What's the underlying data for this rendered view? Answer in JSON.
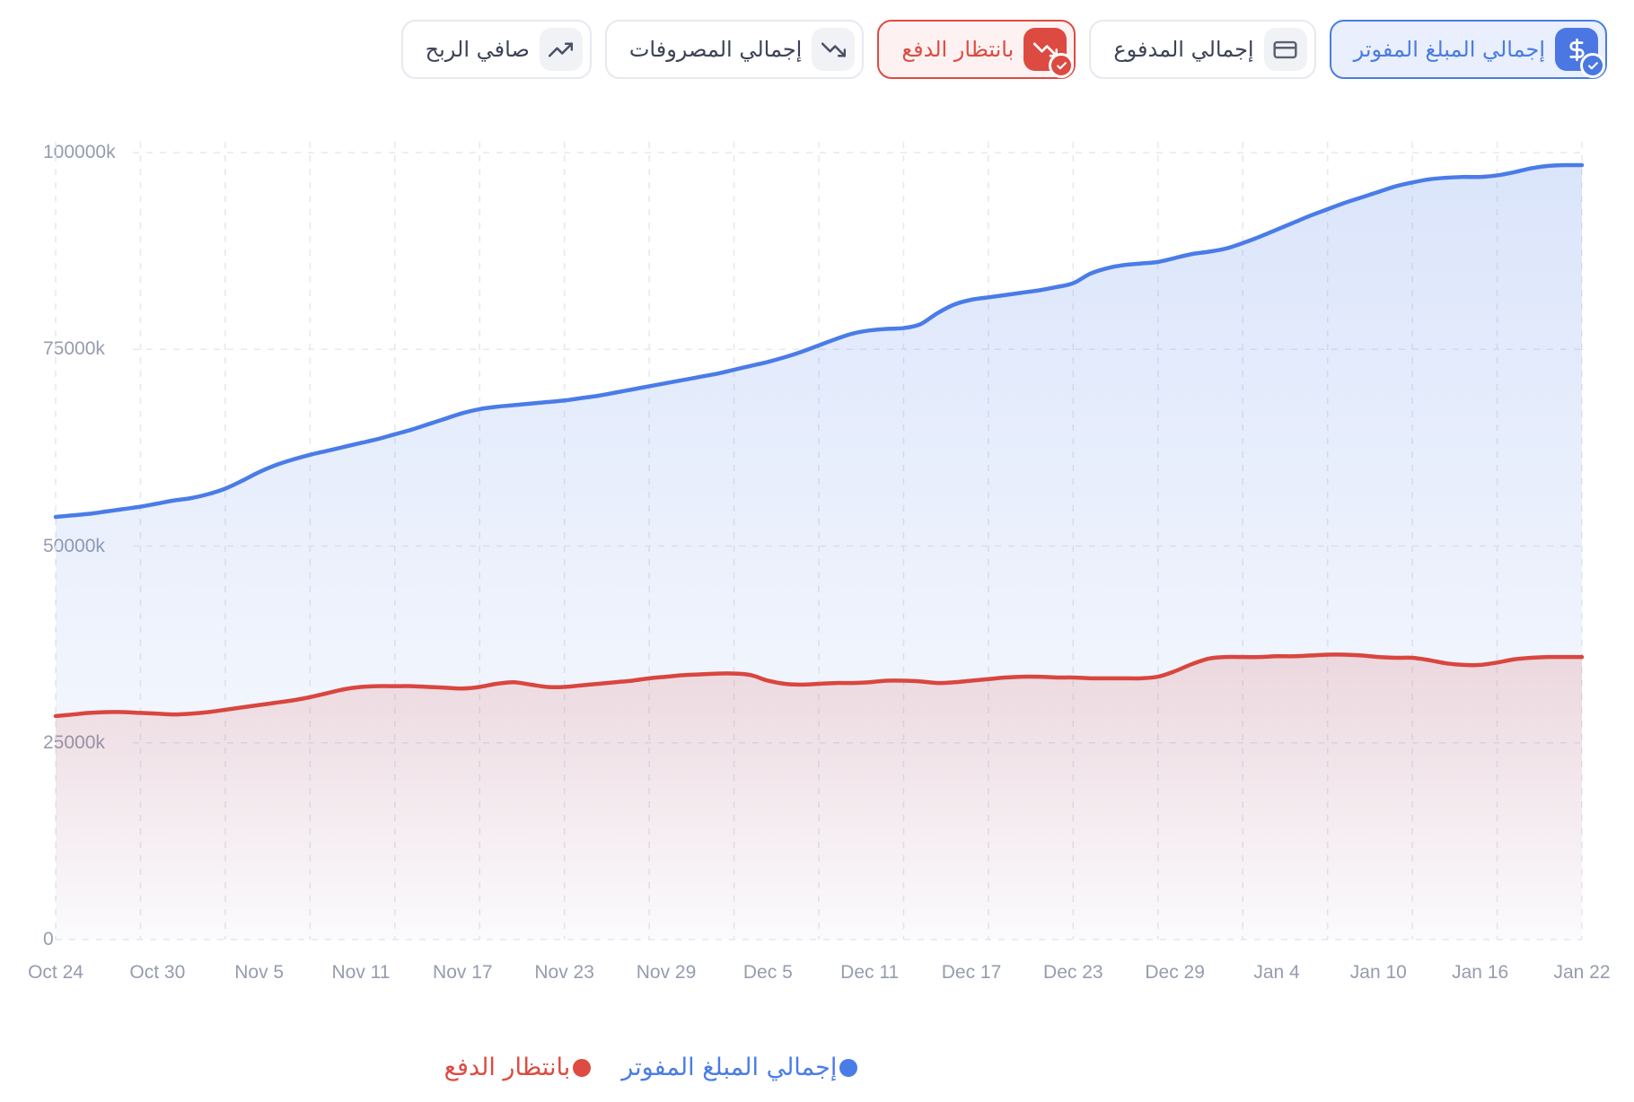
{
  "filters": {
    "buttons": [
      {
        "id": "total-invoiced",
        "label": "إجمالي المبلغ المفوتر",
        "icon": "dollar-icon",
        "selected": true,
        "color": "#4a7ce0"
      },
      {
        "id": "total-paid",
        "label": "إجمالي المدفوع",
        "icon": "credit-card-icon",
        "selected": false,
        "color": ""
      },
      {
        "id": "awaiting-payment",
        "label": "بانتظار الدفع",
        "icon": "trending-down-icon",
        "selected": true,
        "color": "#dd4b42"
      },
      {
        "id": "total-expenses",
        "label": "إجمالي المصروفات",
        "icon": "trending-down-icon",
        "selected": false,
        "color": ""
      },
      {
        "id": "net-profit",
        "label": "صافي الربح",
        "icon": "trending-up-icon",
        "selected": false,
        "color": ""
      }
    ]
  },
  "legend": {
    "items": [
      {
        "label": "إجمالي المبلغ المفوتر",
        "color": "#4a7ce8"
      },
      {
        "label": "بانتظار الدفع",
        "color": "#dd4b42"
      }
    ]
  },
  "colors": {
    "accent_blue": "#4a7ce8",
    "accent_red": "#d9463f",
    "axis_text": "#959caf",
    "grid": "#e7e9f0"
  },
  "chart_data": {
    "type": "area",
    "title": "",
    "xlabel": "",
    "ylabel": "",
    "ylim": [
      0,
      100000
    ],
    "grid": true,
    "legend_position": "bottom",
    "y_tick_labels": [
      "0",
      "25000k",
      "50000k",
      "75000k",
      "100000k"
    ],
    "x_tick_labels": [
      "Oct 24",
      "Oct 30",
      "Nov 5",
      "Nov 11",
      "Nov 17",
      "Nov 23",
      "Nov 29",
      "Dec 5",
      "Dec 11",
      "Dec 17",
      "Dec 23",
      "Dec 29",
      "Jan 4",
      "Jan 10",
      "Jan 16",
      "Jan 22"
    ],
    "x": [
      "Oct 24",
      "Oct 25",
      "Oct 26",
      "Oct 27",
      "Oct 28",
      "Oct 29",
      "Oct 30",
      "Oct 31",
      "Nov 1",
      "Nov 2",
      "Nov 3",
      "Nov 4",
      "Nov 5",
      "Nov 6",
      "Nov 7",
      "Nov 8",
      "Nov 9",
      "Nov 10",
      "Nov 11",
      "Nov 12",
      "Nov 13",
      "Nov 14",
      "Nov 15",
      "Nov 16",
      "Nov 17",
      "Nov 18",
      "Nov 19",
      "Nov 20",
      "Nov 21",
      "Nov 22",
      "Nov 23",
      "Nov 24",
      "Nov 25",
      "Nov 26",
      "Nov 27",
      "Nov 28",
      "Nov 29",
      "Nov 30",
      "Dec 1",
      "Dec 2",
      "Dec 3",
      "Dec 4",
      "Dec 5",
      "Dec 6",
      "Dec 7",
      "Dec 8",
      "Dec 9",
      "Dec 10",
      "Dec 11",
      "Dec 12",
      "Dec 13",
      "Dec 14",
      "Dec 15",
      "Dec 16",
      "Dec 17",
      "Dec 18",
      "Dec 19",
      "Dec 20",
      "Dec 21",
      "Dec 22",
      "Dec 23",
      "Dec 24",
      "Dec 25",
      "Dec 26",
      "Dec 27",
      "Dec 28",
      "Dec 29",
      "Dec 30",
      "Dec 31",
      "Jan 1",
      "Jan 2",
      "Jan 3",
      "Jan 4",
      "Jan 5",
      "Jan 6",
      "Jan 7",
      "Jan 8",
      "Jan 9",
      "Jan 10",
      "Jan 11",
      "Jan 12",
      "Jan 13",
      "Jan 14",
      "Jan 15",
      "Jan 16",
      "Jan 17",
      "Jan 18",
      "Jan 19",
      "Jan 20",
      "Jan 21",
      "Jan 22"
    ],
    "y_unit": "k",
    "series": [
      {
        "name": "إجمالي المبلغ المفوتر",
        "color": "#4a7ce8",
        "values": [
          53700,
          53900,
          54100,
          54400,
          54700,
          55000,
          55400,
          55800,
          56100,
          56600,
          57300,
          58300,
          59400,
          60300,
          61000,
          61600,
          62100,
          62600,
          63100,
          63600,
          64200,
          64800,
          65500,
          66200,
          66900,
          67400,
          67700,
          67900,
          68100,
          68300,
          68500,
          68800,
          69100,
          69500,
          69900,
          70300,
          70700,
          71100,
          71500,
          71900,
          72400,
          72900,
          73400,
          74000,
          74700,
          75500,
          76300,
          77000,
          77400,
          77600,
          77700,
          78200,
          79600,
          80700,
          81300,
          81600,
          81900,
          82200,
          82500,
          82900,
          83400,
          84600,
          85300,
          85700,
          85900,
          86100,
          86600,
          87100,
          87400,
          87800,
          88500,
          89300,
          90200,
          91100,
          92000,
          92800,
          93600,
          94300,
          95000,
          95700,
          96200,
          96600,
          96800,
          96900,
          96900,
          97100,
          97500,
          98000,
          98300,
          98400,
          98400
        ]
      },
      {
        "name": "بانتظار الدفع",
        "color": "#d9463f",
        "values": [
          28400,
          28600,
          28800,
          28900,
          28900,
          28800,
          28700,
          28600,
          28700,
          28900,
          29200,
          29500,
          29800,
          30100,
          30400,
          30800,
          31300,
          31800,
          32100,
          32200,
          32200,
          32200,
          32100,
          32000,
          31900,
          32100,
          32500,
          32700,
          32400,
          32100,
          32100,
          32300,
          32500,
          32700,
          32900,
          33200,
          33400,
          33600,
          33700,
          33800,
          33800,
          33600,
          32900,
          32500,
          32400,
          32500,
          32600,
          32600,
          32700,
          32900,
          32900,
          32800,
          32600,
          32700,
          32900,
          33100,
          33300,
          33400,
          33400,
          33300,
          33300,
          33200,
          33200,
          33200,
          33200,
          33400,
          34100,
          35000,
          35700,
          35900,
          35900,
          35900,
          36000,
          36000,
          36100,
          36200,
          36200,
          36100,
          35900,
          35800,
          35800,
          35500,
          35100,
          34900,
          34900,
          35200,
          35600,
          35800,
          35900,
          35900,
          35900
        ]
      }
    ]
  }
}
